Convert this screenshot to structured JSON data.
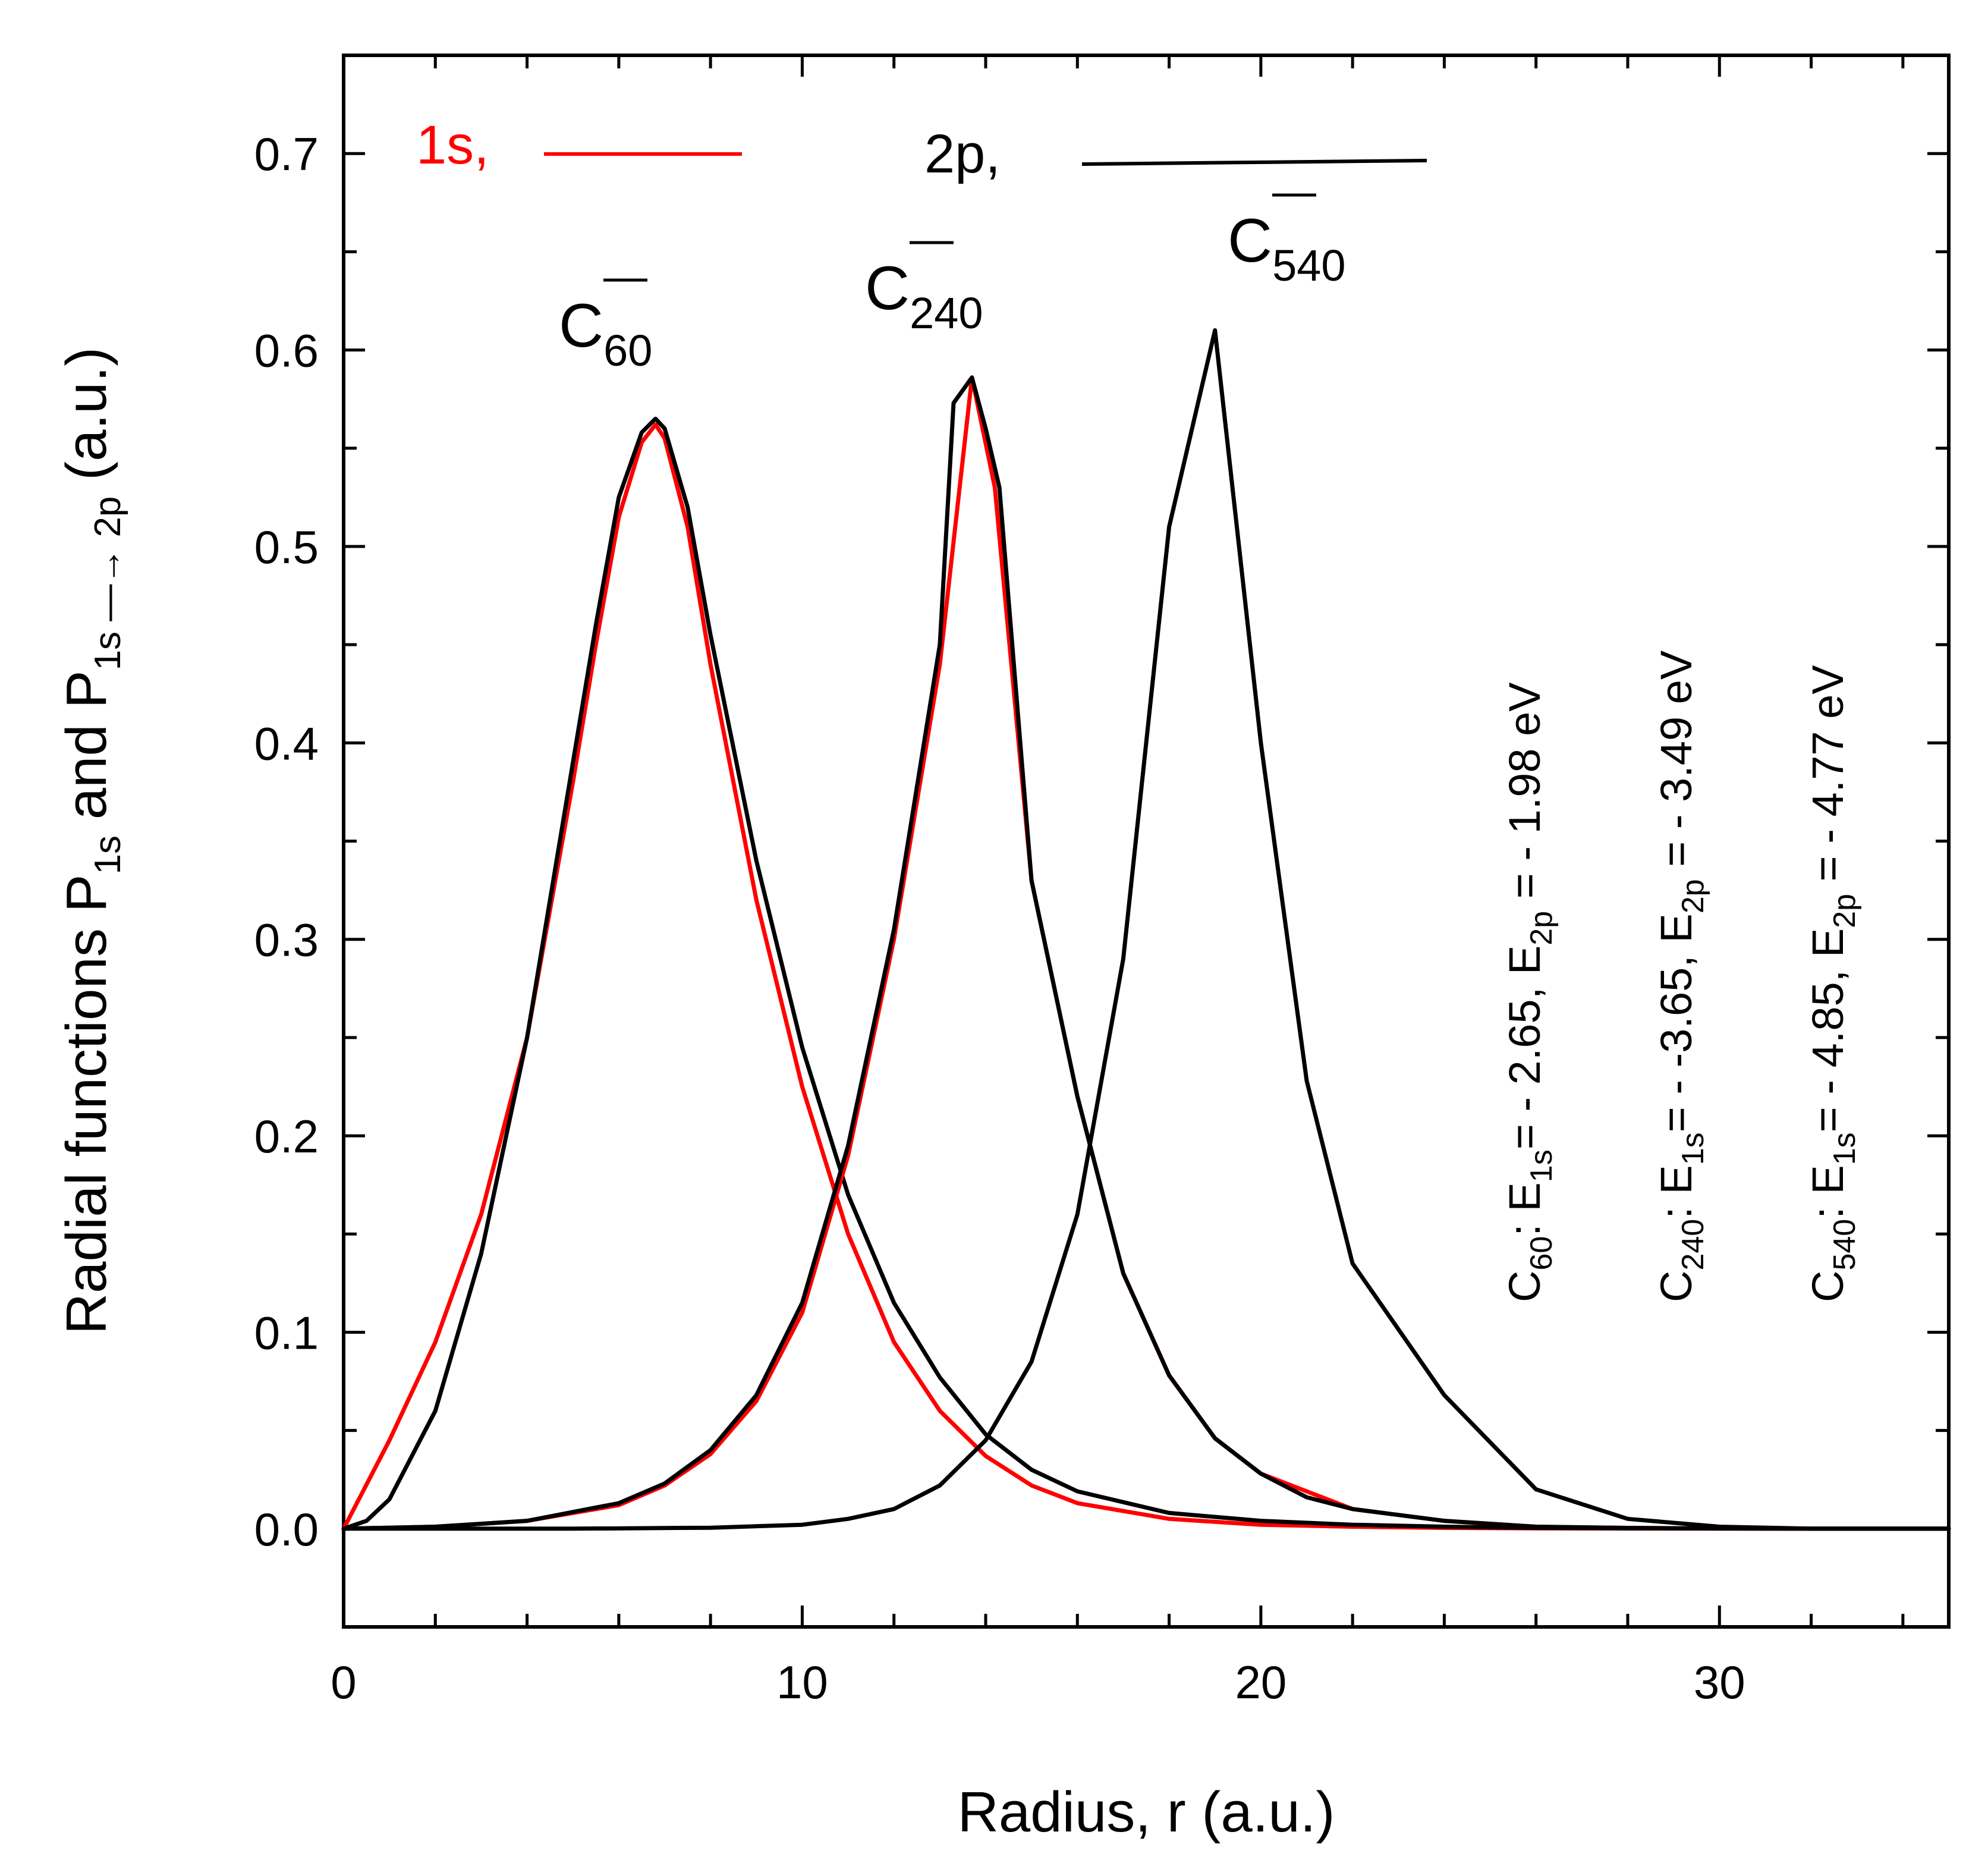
{
  "chart_data": {
    "type": "line",
    "xlabel": "Radius, r (a.u.)",
    "ylabel": {
      "main": "Radial functions P",
      "sub1": "1s",
      "mid": " and P",
      "sub2": "1s —→ 2p",
      "tail": " (a.u.)"
    },
    "xlim": [
      0,
      35
    ],
    "ylim": [
      -0.05,
      0.75
    ],
    "x_ticks": [
      0,
      10,
      20,
      30
    ],
    "x_tick_labels": [
      "0",
      "10",
      "20",
      "30"
    ],
    "y_ticks": [
      0.0,
      0.1,
      0.2,
      0.3,
      0.4,
      0.5,
      0.6,
      0.7
    ],
    "y_tick_labels": [
      "0.0",
      "0.1",
      "0.2",
      "0.3",
      "0.4",
      "0.5",
      "0.6",
      "0.7"
    ],
    "legend": [
      {
        "label": "1s,",
        "color": "#ff0000"
      },
      {
        "label": "2p,",
        "color": "#000000"
      }
    ],
    "peak_labels": [
      {
        "base": "C",
        "sub": "60",
        "sup": "—"
      },
      {
        "base": "C",
        "sub": "240",
        "sup": "—"
      },
      {
        "base": "C",
        "sub": "540",
        "sup": "—"
      }
    ],
    "energy_annotations": [
      {
        "c": "C",
        "csub": "60",
        "e1": ": E",
        "e1sub": "1s",
        "v1": "= - 2.65, E",
        "e2sub": "2p",
        "v2": " = - 1.98 eV"
      },
      {
        "c": "C",
        "csub": "240",
        "e1": ": E",
        "e1sub": "1s",
        "v1": "= - -3.65, E",
        "e2sub": "2p",
        "v2": " = - 3.49 eV"
      },
      {
        "c": "C",
        "csub": "540",
        "e1": ": E",
        "e1sub": "1s",
        "v1": "= - 4.85, E",
        "e2sub": "2p",
        "v2": " = - 4.77 eV"
      }
    ],
    "series": [
      {
        "name": "C60- 1s",
        "color": "#ff0000",
        "x": [
          0,
          1,
          2,
          3,
          4,
          5,
          5.5,
          6,
          6.5,
          6.8,
          7,
          7.5,
          8,
          9,
          10,
          11,
          12,
          13,
          14,
          15,
          16,
          18,
          20,
          22,
          24,
          26,
          28,
          30,
          32,
          35
        ],
        "y": [
          0,
          0.045,
          0.095,
          0.16,
          0.25,
          0.38,
          0.45,
          0.515,
          0.553,
          0.562,
          0.555,
          0.51,
          0.44,
          0.32,
          0.225,
          0.15,
          0.095,
          0.06,
          0.037,
          0.022,
          0.013,
          0.005,
          0.002,
          0.001,
          0.0004,
          0.0002,
          0.0001,
          0,
          0,
          0
        ]
      },
      {
        "name": "C60- 2p",
        "color": "#000000",
        "x": [
          0,
          0.5,
          1,
          2,
          3,
          4,
          5,
          5.5,
          6,
          6.5,
          6.8,
          7,
          7.5,
          8,
          9,
          10,
          11,
          12,
          13,
          14,
          15,
          16,
          18,
          20,
          22,
          24,
          26,
          28,
          30,
          32,
          35
        ],
        "y": [
          0,
          0.004,
          0.015,
          0.06,
          0.14,
          0.25,
          0.39,
          0.46,
          0.525,
          0.558,
          0.565,
          0.56,
          0.52,
          0.455,
          0.34,
          0.245,
          0.17,
          0.115,
          0.077,
          0.048,
          0.03,
          0.019,
          0.008,
          0.004,
          0.002,
          0.001,
          0.0004,
          0.0002,
          0.0001,
          0,
          0
        ]
      },
      {
        "name": "C240- 1s",
        "color": "#ff0000",
        "x": [
          0,
          2,
          4,
          6,
          7,
          8,
          9,
          10,
          11,
          12,
          13,
          13.7,
          14.2,
          15,
          16,
          17,
          18,
          19,
          20,
          22,
          24,
          26,
          28,
          30,
          32,
          35
        ],
        "y": [
          0,
          0.001,
          0.004,
          0.012,
          0.022,
          0.038,
          0.065,
          0.11,
          0.19,
          0.3,
          0.44,
          0.586,
          0.53,
          0.33,
          0.22,
          0.13,
          0.078,
          0.046,
          0.028,
          0.01,
          0.004,
          0.001,
          0.0004,
          0.0001,
          0,
          0
        ]
      },
      {
        "name": "C240- 2p",
        "color": "#000000",
        "x": [
          0,
          2,
          4,
          6,
          7,
          8,
          9,
          10,
          11,
          12,
          13,
          13.3,
          13.7,
          14,
          14.3,
          15,
          16,
          17,
          18,
          19,
          20,
          21,
          22,
          24,
          26,
          28,
          30,
          32,
          35
        ],
        "y": [
          0,
          0.001,
          0.004,
          0.013,
          0.023,
          0.04,
          0.068,
          0.115,
          0.195,
          0.305,
          0.45,
          0.573,
          0.586,
          0.56,
          0.53,
          0.33,
          0.22,
          0.13,
          0.078,
          0.046,
          0.028,
          0.016,
          0.01,
          0.004,
          0.001,
          0.0004,
          0.0001,
          0,
          0
        ]
      },
      {
        "name": "C540- 2p",
        "color": "#000000",
        "x": [
          0,
          5,
          8,
          10,
          11,
          12,
          13,
          14,
          15,
          16,
          17,
          18,
          19,
          20,
          21,
          22,
          24,
          26,
          28,
          30,
          32,
          35
        ],
        "y": [
          0,
          0,
          0.0005,
          0.002,
          0.005,
          0.01,
          0.022,
          0.045,
          0.085,
          0.16,
          0.29,
          0.51,
          0.61,
          0.4,
          0.228,
          0.135,
          0.068,
          0.02,
          0.005,
          0.001,
          0,
          0
        ]
      }
    ]
  }
}
